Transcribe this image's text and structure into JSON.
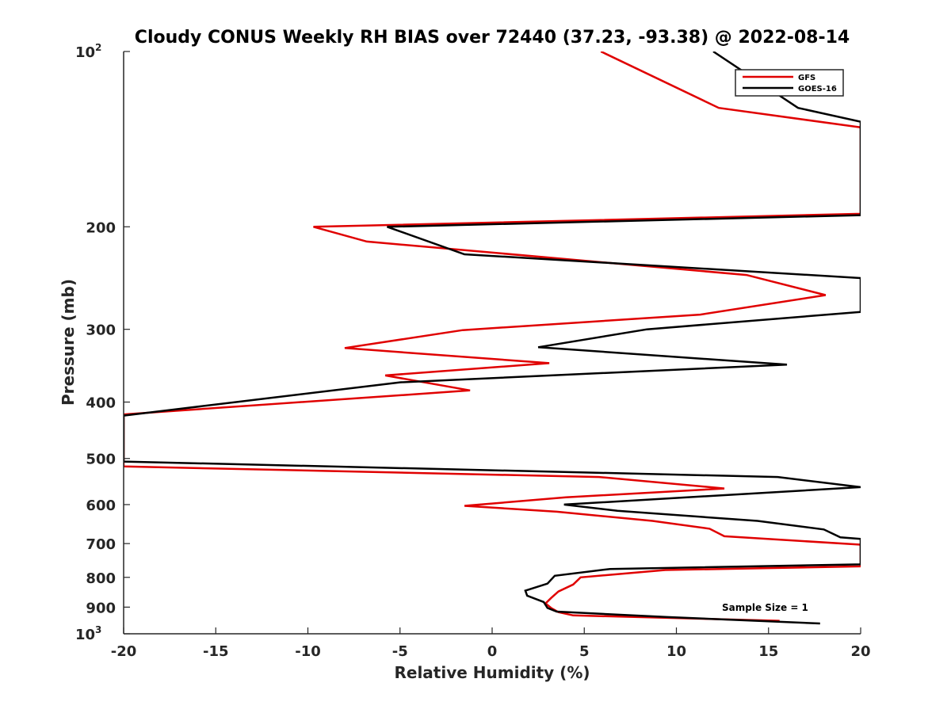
{
  "chart_data": {
    "type": "line",
    "title": "Cloudy CONUS Weekly RH BIAS over 72440 (37.23, -93.38) @ 2022-08-14",
    "xlabel": "Relative Humidity (%)",
    "ylabel": "Pressure (mb)",
    "xlim": [
      -20,
      20
    ],
    "ylim": [
      100,
      1000
    ],
    "y_scale": "log",
    "y_reversed": true,
    "grid": false,
    "legend_position": "top-right",
    "x_ticks": [
      "-20",
      "-15",
      "-10",
      "-5",
      "0",
      "5",
      "10",
      "15",
      "20"
    ],
    "y_ticks": [
      {
        "value": 100,
        "label": "10",
        "sup": "2"
      },
      {
        "value": 200,
        "label": "200",
        "sup": ""
      },
      {
        "value": 300,
        "label": "300",
        "sup": ""
      },
      {
        "value": 400,
        "label": "400",
        "sup": ""
      },
      {
        "value": 500,
        "label": "500",
        "sup": ""
      },
      {
        "value": 600,
        "label": "600",
        "sup": ""
      },
      {
        "value": 700,
        "label": "700",
        "sup": ""
      },
      {
        "value": 800,
        "label": "800",
        "sup": ""
      },
      {
        "value": 900,
        "label": "900",
        "sup": ""
      },
      {
        "value": 1000,
        "label": "10",
        "sup": "3"
      }
    ],
    "annotation": "Sample Size = 1",
    "series": [
      {
        "name": "GFS",
        "color": "#e00000",
        "points": [
          [
            5.9,
            100
          ],
          [
            12.3,
            125
          ],
          [
            20,
            135
          ],
          [
            20,
            190
          ],
          [
            -9.7,
            200
          ],
          [
            -6.8,
            212
          ],
          [
            13.8,
            242
          ],
          [
            18.1,
            262
          ],
          [
            11.3,
            283
          ],
          [
            -1.6,
            301
          ],
          [
            -8.0,
            323
          ],
          [
            3.1,
            343
          ],
          [
            -5.8,
            360
          ],
          [
            -1.2,
            382
          ],
          [
            -20,
            420
          ],
          [
            -20,
            516
          ],
          [
            5.8,
            538
          ],
          [
            12.6,
            563
          ],
          [
            4.0,
            583
          ],
          [
            -1.5,
            603
          ],
          [
            3.5,
            617
          ],
          [
            8.7,
            640
          ],
          [
            11.8,
            660
          ],
          [
            12.6,
            680
          ],
          [
            20,
            703
          ],
          [
            20,
            766
          ],
          [
            9.4,
            777
          ],
          [
            4.8,
            800
          ],
          [
            4.4,
            823
          ],
          [
            3.6,
            846
          ],
          [
            3.2,
            868
          ],
          [
            2.9,
            887
          ],
          [
            3.2,
            903
          ],
          [
            3.6,
            918
          ],
          [
            4.4,
            930
          ],
          [
            15.6,
            950
          ]
        ]
      },
      {
        "name": "GOES-16",
        "color": "#000000",
        "points": [
          [
            12.0,
            100
          ],
          [
            16.6,
            125
          ],
          [
            20,
            132
          ],
          [
            20,
            191
          ],
          [
            -5.7,
            200
          ],
          [
            -1.5,
            223
          ],
          [
            20,
            245
          ],
          [
            20,
            280
          ],
          [
            8.4,
            300
          ],
          [
            2.5,
            322
          ],
          [
            16.0,
            345
          ],
          [
            -5.0,
            370
          ],
          [
            -20,
            422
          ],
          [
            -20,
            506
          ],
          [
            15.5,
            538
          ],
          [
            20,
            560
          ],
          [
            3.9,
            600
          ],
          [
            6.8,
            615
          ],
          [
            14.4,
            640
          ],
          [
            18.0,
            662
          ],
          [
            18.9,
            683
          ],
          [
            20,
            687
          ],
          [
            20,
            760
          ],
          [
            6.4,
            774
          ],
          [
            3.4,
            795
          ],
          [
            3.0,
            820
          ],
          [
            1.8,
            843
          ],
          [
            1.9,
            860
          ],
          [
            2.8,
            882
          ],
          [
            3.0,
            903
          ],
          [
            3.5,
            916
          ],
          [
            9.5,
            936
          ],
          [
            17.8,
            960
          ]
        ]
      }
    ]
  }
}
